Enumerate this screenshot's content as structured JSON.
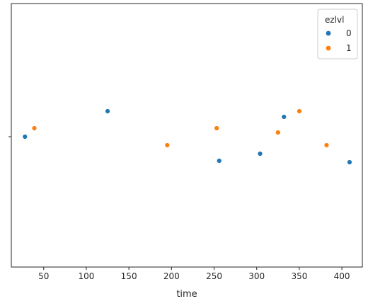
{
  "chart_data": {
    "type": "scatter",
    "xlabel": "time",
    "ylabel": "",
    "xlim": [
      12,
      424
    ],
    "xticks": [
      50,
      100,
      150,
      200,
      250,
      300,
      350,
      400
    ],
    "legend": {
      "title": "ezlvl",
      "placement": "upper-right"
    },
    "grid": false,
    "series": [
      {
        "name": "0",
        "color": "#1f77b4",
        "points": [
          {
            "x": 28,
            "y": 0.0
          },
          {
            "x": 125,
            "y": 0.18
          },
          {
            "x": 256,
            "y": -0.17
          },
          {
            "x": 304,
            "y": -0.12
          },
          {
            "x": 332,
            "y": 0.14
          },
          {
            "x": 409,
            "y": -0.18
          }
        ]
      },
      {
        "name": "1",
        "color": "#ff7f0e",
        "points": [
          {
            "x": 39,
            "y": 0.06
          },
          {
            "x": 195,
            "y": -0.06
          },
          {
            "x": 253,
            "y": 0.06
          },
          {
            "x": 325,
            "y": 0.03
          },
          {
            "x": 350,
            "y": 0.18
          },
          {
            "x": 382,
            "y": -0.06
          }
        ]
      }
    ]
  }
}
